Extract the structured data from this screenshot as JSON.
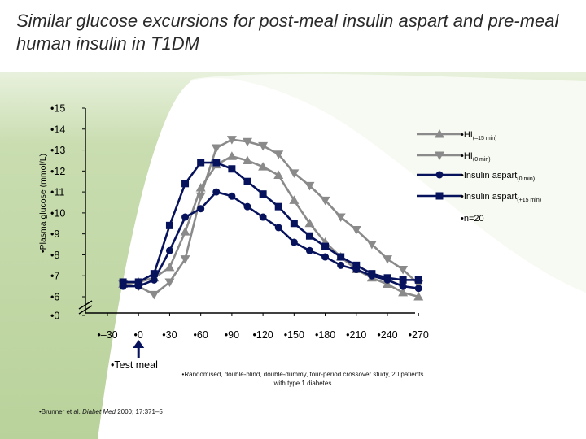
{
  "slide": {
    "title": "Similar glucose excursions for post-meal insulin aspart and pre-meal human insulin in T1DM",
    "test_meal": "•Test meal",
    "footnote": "•Randomised, double-blind, double-dummy, four-period crossover study, 20 patients with type 1 diabetes",
    "citation_prefix": "•Brunner et al. ",
    "citation_journal": "Diabet Med",
    "citation_suffix": " 2000; 17:371–5",
    "n_label": "•n=20"
  },
  "colors": {
    "green_band": "#c9ddb0",
    "green_light": "#eaf2df",
    "hi_color": "#8a8a8a",
    "aspart_color": "#07125c"
  },
  "chart_data": {
    "type": "line",
    "title": "",
    "xlabel": "",
    "ylabel": "•Plasma glucose (mmol/L)",
    "x_tick_labels": [
      "•–30",
      "•0",
      "•30",
      "•60",
      "•90",
      "•120",
      "•150",
      "•180",
      "•210",
      "•240",
      "•270"
    ],
    "x_ticks": [
      -30,
      0,
      30,
      60,
      90,
      120,
      150,
      180,
      210,
      240,
      270
    ],
    "y_tick_labels": [
      "•0",
      "•6",
      "•7",
      "•8",
      "•9",
      "•10",
      "•11",
      "•12",
      "•13",
      "•14",
      "•15"
    ],
    "y_ticks": [
      0,
      6,
      7,
      8,
      9,
      10,
      11,
      12,
      13,
      14,
      15
    ],
    "ylim_broken": [
      6,
      15
    ],
    "axis_break": true,
    "series": [
      {
        "name": "•HI",
        "sub": "(–15 min)",
        "marker": "triangle-up",
        "color": "#8a8a8a",
        "x": [
          -15,
          0,
          15,
          30,
          45,
          60,
          75,
          90,
          105,
          120,
          135,
          150,
          165,
          180,
          195,
          210,
          225,
          240,
          255,
          270
        ],
        "y": [
          6.6,
          6.7,
          6.9,
          7.4,
          9.1,
          11.2,
          12.3,
          12.7,
          12.5,
          12.2,
          11.8,
          10.6,
          9.5,
          8.6,
          7.9,
          7.3,
          6.9,
          6.6,
          6.2,
          6.0
        ]
      },
      {
        "name": "•HI",
        "sub": "(0 min)",
        "marker": "triangle-down",
        "color": "#8a8a8a",
        "x": [
          -15,
          0,
          15,
          30,
          45,
          60,
          75,
          90,
          105,
          120,
          135,
          150,
          165,
          180,
          195,
          210,
          225,
          240,
          255,
          270
        ],
        "y": [
          6.6,
          6.5,
          6.1,
          6.7,
          7.8,
          10.8,
          13.1,
          13.5,
          13.4,
          13.2,
          12.8,
          11.9,
          11.3,
          10.6,
          9.8,
          9.2,
          8.5,
          7.8,
          7.3,
          6.6
        ]
      },
      {
        "name": "•Insulin aspart",
        "sub": "(0 min)",
        "marker": "circle",
        "color": "#07125c",
        "x": [
          -15,
          0,
          15,
          30,
          45,
          60,
          75,
          90,
          105,
          120,
          135,
          150,
          165,
          180,
          195,
          210,
          225,
          240,
          255,
          270
        ],
        "y": [
          6.5,
          6.5,
          6.8,
          8.2,
          9.8,
          10.2,
          11.0,
          10.8,
          10.3,
          9.8,
          9.3,
          8.6,
          8.2,
          7.9,
          7.5,
          7.3,
          7.0,
          6.8,
          6.5,
          6.4
        ]
      },
      {
        "name": "•Insulin aspart",
        "sub": "(+15 min)",
        "marker": "square",
        "color": "#07125c",
        "x": [
          -15,
          0,
          15,
          30,
          45,
          60,
          75,
          90,
          105,
          120,
          135,
          150,
          165,
          180,
          195,
          210,
          225,
          240,
          255,
          270
        ],
        "y": [
          6.7,
          6.7,
          7.1,
          9.4,
          11.4,
          12.4,
          12.4,
          12.1,
          11.5,
          10.9,
          10.3,
          9.5,
          8.9,
          8.4,
          7.9,
          7.5,
          7.1,
          6.9,
          6.8,
          6.8
        ]
      }
    ]
  }
}
